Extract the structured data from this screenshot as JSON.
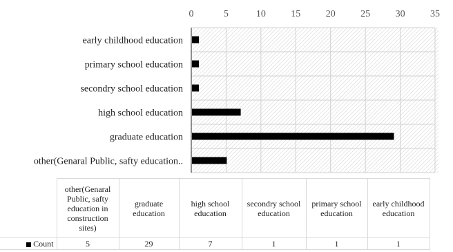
{
  "chart_data": {
    "type": "bar",
    "orientation": "horizontal",
    "categories": [
      "other(Genaral Public, safty education..",
      "graduate education",
      "high school education",
      "secondry school education",
      "primary school education",
      "early childhood education"
    ],
    "series": [
      {
        "name": "Count",
        "values": [
          5,
          29,
          7,
          1,
          1,
          1
        ],
        "color": "#000000"
      }
    ],
    "xlim": [
      0,
      35
    ],
    "xticks": [
      0,
      5,
      10,
      15,
      20,
      25,
      30,
      35
    ],
    "x_axis_position": "top",
    "plot_background": "diagonal hatch",
    "grid": true,
    "data_table": {
      "headers": [
        "other(Genaral Public, safty education in construction sites)",
        "graduate education",
        "high school education",
        "secondry school education",
        "primary school education",
        "early childhood education"
      ],
      "row_label": "Count",
      "values": [
        "5",
        "29",
        "7",
        "1",
        "1",
        "1"
      ]
    }
  }
}
